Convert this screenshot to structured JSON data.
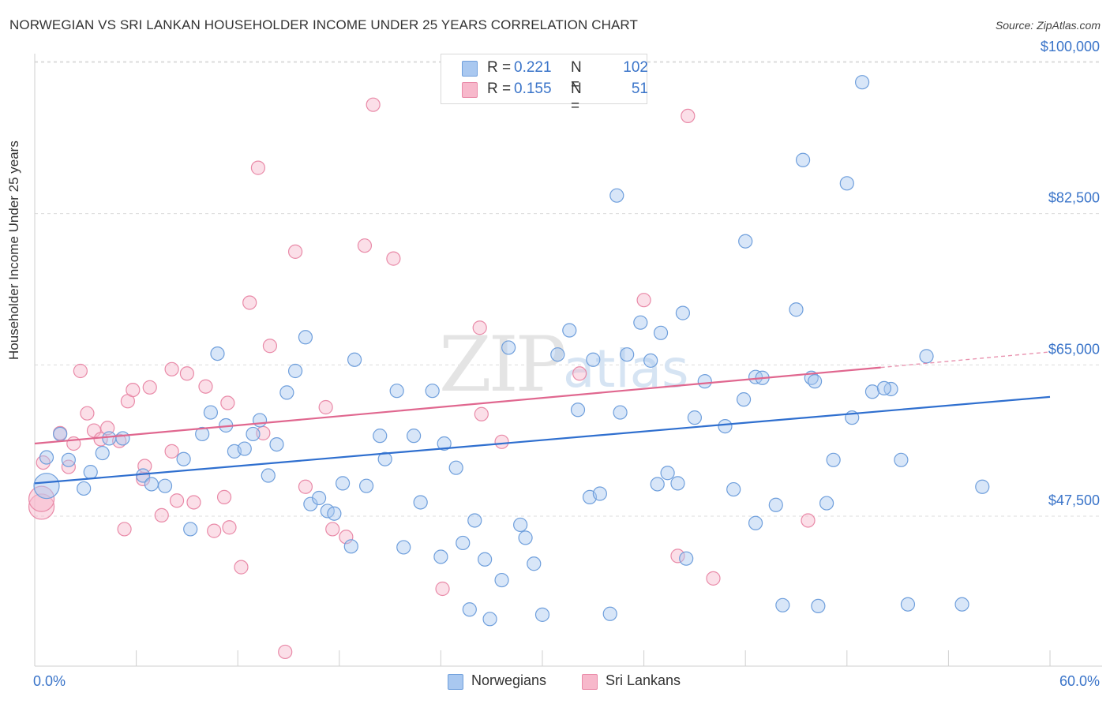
{
  "header": {
    "title": "NORWEGIAN VS SRI LANKAN HOUSEHOLDER INCOME UNDER 25 YEARS CORRELATION CHART",
    "source": "Source: ZipAtlas.com"
  },
  "watermark": {
    "zip": "ZIP",
    "atlas": "atlas"
  },
  "legend": {
    "rows": [
      {
        "r_label": "R = ",
        "r_value": "0.221",
        "n_label": "N = ",
        "n_value": "102",
        "color": "#a9c8f0"
      },
      {
        "r_label": "R = ",
        "r_value": "0.155",
        "n_label": "N = ",
        "n_value": "51",
        "color": "#f7b8cb"
      }
    ]
  },
  "bottom_legend": {
    "norwegians": "Norwegians",
    "sri_lankans": "Sri Lankans"
  },
  "colors": {
    "blue_fill": "#a9c8f0",
    "blue_stroke": "#6f9fdc",
    "blue_line": "#2f6fcf",
    "pink_fill": "#f7b8cb",
    "pink_stroke": "#e98aa8",
    "pink_line": "#e0678f",
    "axis_text": "#3a74c9",
    "grid": "#dcdcdc"
  },
  "chart_data": {
    "type": "scatter",
    "title": "NORWEGIAN VS SRI LANKAN HOUSEHOLDER INCOME UNDER 25 YEARS CORRELATION CHART",
    "xlabel": "",
    "ylabel": "Householder Income Under 25 years",
    "xlim": [
      0,
      60
    ],
    "ylim": [
      32000,
      103000
    ],
    "x_tick_labels": [
      "0.0%",
      "60.0%"
    ],
    "y_ticks": [
      47500,
      65000,
      82500,
      100000
    ],
    "y_tick_labels": [
      "$47,500",
      "$65,000",
      "$82,500",
      "$100,000"
    ],
    "grid": true,
    "legend_position": "top-center",
    "series": [
      {
        "name": "Norwegians",
        "color": "#a9c8f0",
        "R": 0.221,
        "N": 102,
        "trend": {
          "x": [
            0,
            60
          ],
          "y": [
            51300,
            61300
          ]
        },
        "points": [
          [
            0.7,
            54300
          ],
          [
            1.5,
            57000
          ],
          [
            2.0,
            54000
          ],
          [
            3.3,
            52600
          ],
          [
            2.9,
            50700
          ],
          [
            4.0,
            54800
          ],
          [
            4.4,
            56500
          ],
          [
            5.2,
            56500
          ],
          [
            6.4,
            52200
          ],
          [
            6.9,
            51200
          ],
          [
            7.7,
            51000
          ],
          [
            8.8,
            54100
          ],
          [
            9.2,
            46000
          ],
          [
            9.9,
            57000
          ],
          [
            10.4,
            59500
          ],
          [
            10.8,
            66300
          ],
          [
            11.3,
            58000
          ],
          [
            11.8,
            55000
          ],
          [
            12.4,
            55300
          ],
          [
            12.9,
            57000
          ],
          [
            13.3,
            58600
          ],
          [
            13.8,
            52200
          ],
          [
            14.3,
            55800
          ],
          [
            14.9,
            61800
          ],
          [
            15.4,
            64300
          ],
          [
            16.0,
            68200
          ],
          [
            16.3,
            48900
          ],
          [
            16.8,
            49600
          ],
          [
            17.3,
            48100
          ],
          [
            17.7,
            47800
          ],
          [
            18.2,
            51300
          ],
          [
            18.7,
            44000
          ],
          [
            18.9,
            65600
          ],
          [
            19.6,
            51000
          ],
          [
            20.4,
            56800
          ],
          [
            20.7,
            54100
          ],
          [
            21.4,
            62000
          ],
          [
            21.8,
            43900
          ],
          [
            22.4,
            56800
          ],
          [
            22.8,
            49100
          ],
          [
            23.5,
            62000
          ],
          [
            24.0,
            42800
          ],
          [
            24.2,
            55900
          ],
          [
            24.9,
            53100
          ],
          [
            25.7,
            36700
          ],
          [
            25.3,
            44400
          ],
          [
            26.0,
            47000
          ],
          [
            26.6,
            42500
          ],
          [
            26.9,
            35600
          ],
          [
            27.6,
            40100
          ],
          [
            28.0,
            67000
          ],
          [
            28.7,
            46500
          ],
          [
            29.0,
            45000
          ],
          [
            29.5,
            42000
          ],
          [
            30.0,
            36100
          ],
          [
            30.9,
            66200
          ],
          [
            31.6,
            69000
          ],
          [
            32.1,
            59800
          ],
          [
            32.8,
            49700
          ],
          [
            33.0,
            65600
          ],
          [
            33.4,
            50100
          ],
          [
            34.0,
            36200
          ],
          [
            34.4,
            84600
          ],
          [
            34.6,
            59500
          ],
          [
            35.0,
            66200
          ],
          [
            35.8,
            69900
          ],
          [
            36.4,
            65500
          ],
          [
            36.8,
            51200
          ],
          [
            37.0,
            68700
          ],
          [
            37.4,
            52500
          ],
          [
            38.0,
            51300
          ],
          [
            38.3,
            71000
          ],
          [
            38.5,
            42600
          ],
          [
            39.0,
            58900
          ],
          [
            39.6,
            63100
          ],
          [
            40.8,
            57900
          ],
          [
            41.3,
            50600
          ],
          [
            42.0,
            79300
          ],
          [
            42.6,
            46700
          ],
          [
            42.6,
            63600
          ],
          [
            43.0,
            63500
          ],
          [
            43.8,
            48800
          ],
          [
            44.2,
            37200
          ],
          [
            45.0,
            71400
          ],
          [
            45.4,
            88700
          ],
          [
            45.9,
            63500
          ],
          [
            46.1,
            63100
          ],
          [
            46.3,
            37100
          ],
          [
            46.8,
            49000
          ],
          [
            47.2,
            54000
          ],
          [
            48.0,
            86000
          ],
          [
            48.3,
            58900
          ],
          [
            48.9,
            97700
          ],
          [
            49.5,
            61900
          ],
          [
            50.6,
            62200
          ],
          [
            51.2,
            54000
          ],
          [
            51.6,
            37300
          ],
          [
            52.7,
            66000
          ],
          [
            56.0,
            50900
          ],
          [
            54.8,
            37300
          ],
          [
            50.2,
            62300
          ],
          [
            41.9,
            61000
          ]
        ],
        "big_points": [
          [
            0.7,
            51000
          ]
        ]
      },
      {
        "name": "Sri Lankans",
        "color": "#f7b8cb",
        "R": 0.155,
        "N": 51,
        "trend": {
          "x": [
            0,
            50
          ],
          "y": [
            55900,
            64700
          ]
        },
        "trend_dashed_to": {
          "x": 60,
          "y": 66500
        },
        "points": [
          [
            0.5,
            53700
          ],
          [
            1.5,
            57100
          ],
          [
            2.0,
            53200
          ],
          [
            2.3,
            55900
          ],
          [
            2.7,
            64300
          ],
          [
            3.1,
            59400
          ],
          [
            3.5,
            57400
          ],
          [
            3.9,
            56400
          ],
          [
            4.3,
            57700
          ],
          [
            5.0,
            56200
          ],
          [
            5.3,
            46000
          ],
          [
            5.5,
            60800
          ],
          [
            5.8,
            62100
          ],
          [
            6.4,
            51800
          ],
          [
            6.5,
            53300
          ],
          [
            6.8,
            62400
          ],
          [
            7.5,
            47600
          ],
          [
            8.1,
            64500
          ],
          [
            8.1,
            55000
          ],
          [
            8.4,
            49300
          ],
          [
            9.0,
            64000
          ],
          [
            9.4,
            49100
          ],
          [
            10.1,
            62500
          ],
          [
            10.6,
            45800
          ],
          [
            11.2,
            49700
          ],
          [
            11.4,
            60600
          ],
          [
            11.5,
            46200
          ],
          [
            12.2,
            41600
          ],
          [
            12.7,
            72200
          ],
          [
            13.2,
            87800
          ],
          [
            13.5,
            57100
          ],
          [
            13.9,
            67200
          ],
          [
            14.8,
            31800
          ],
          [
            15.4,
            78100
          ],
          [
            16.0,
            50900
          ],
          [
            17.2,
            60100
          ],
          [
            17.6,
            46000
          ],
          [
            18.4,
            45100
          ],
          [
            19.5,
            78800
          ],
          [
            20.0,
            95100
          ],
          [
            21.2,
            77300
          ],
          [
            24.1,
            39100
          ],
          [
            26.3,
            69300
          ],
          [
            26.4,
            59300
          ],
          [
            27.6,
            56100
          ],
          [
            32.2,
            64000
          ],
          [
            36.0,
            72500
          ],
          [
            38.0,
            42900
          ],
          [
            38.6,
            93800
          ],
          [
            40.1,
            40300
          ],
          [
            45.7,
            47000
          ]
        ],
        "big_points": [
          [
            0.4,
            48600
          ],
          [
            0.4,
            49500
          ]
        ]
      }
    ]
  }
}
